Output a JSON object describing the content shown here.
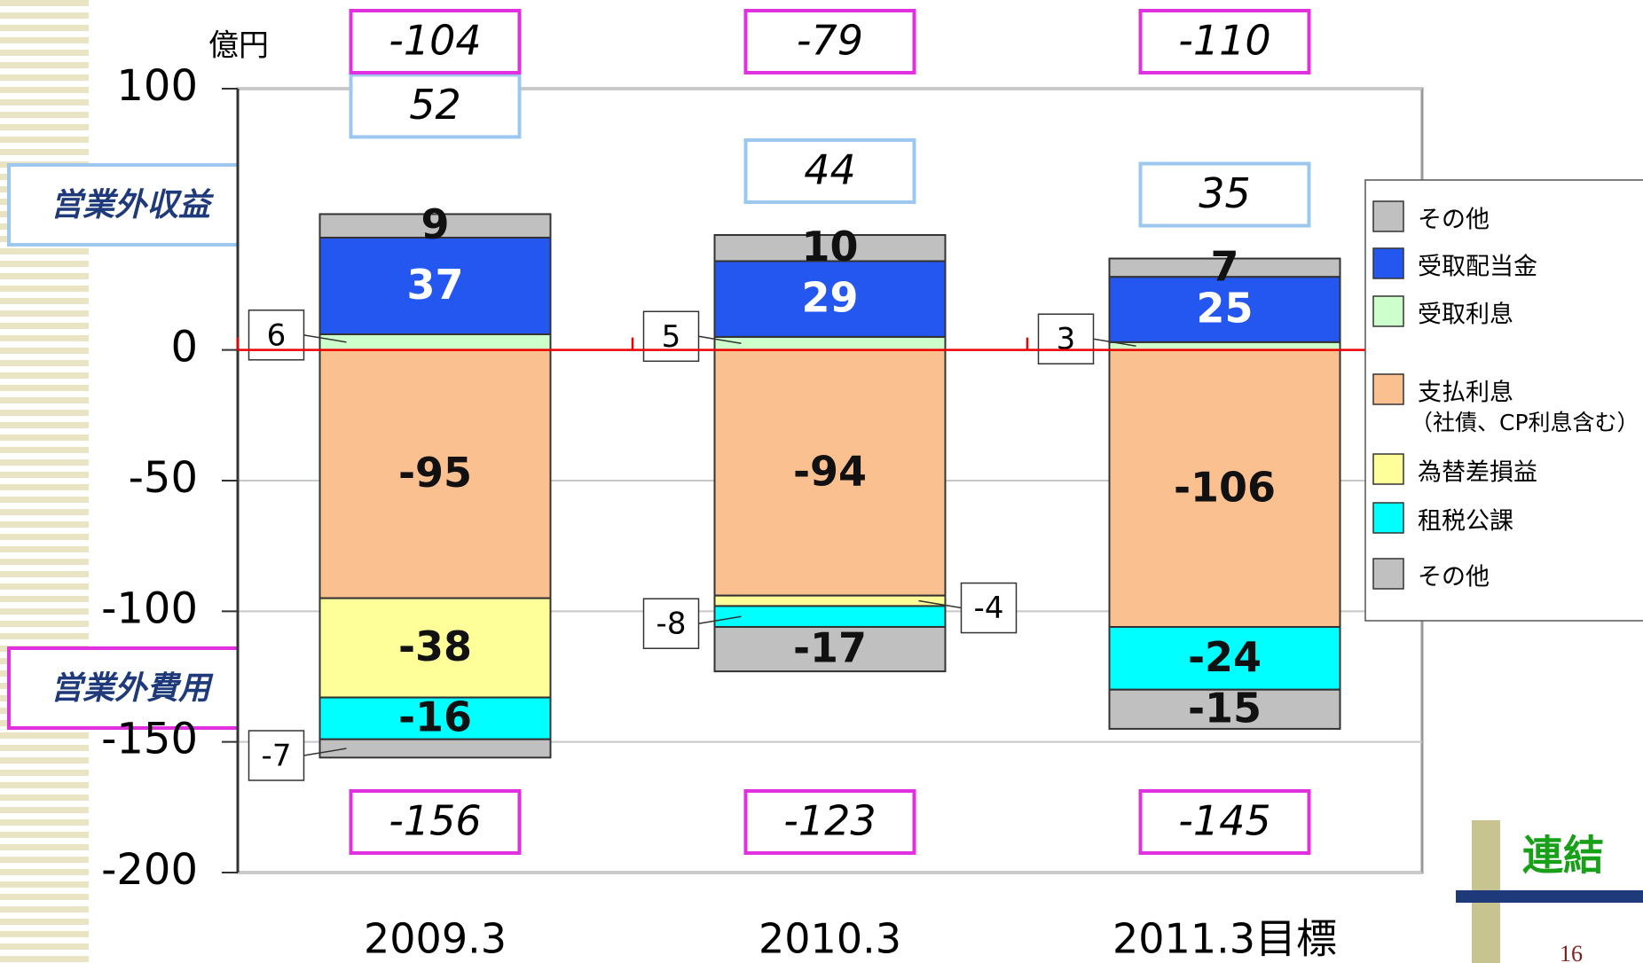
{
  "unit": "億円",
  "badge": "連結",
  "page_number": "16",
  "chart_data": {
    "type": "bar",
    "stacked": true,
    "categories": [
      "2009.3",
      "2010.3",
      "2011.3目標"
    ],
    "series": [
      {
        "name": "その他",
        "color": "#c0c0c0",
        "values": [
          9,
          10,
          7
        ]
      },
      {
        "name": "受取配当金",
        "color": "#2456f0",
        "values": [
          37,
          29,
          25
        ]
      },
      {
        "name": "受取利息",
        "color": "#ccffcc",
        "values": [
          6,
          5,
          3
        ]
      },
      {
        "name": "支払利息",
        "note": "（社債、CP利息含む）",
        "color": "#fac090",
        "values": [
          -95,
          -94,
          -106
        ]
      },
      {
        "name": "為替差損益",
        "color": "#ffff99",
        "values": [
          -38,
          -4,
          null
        ]
      },
      {
        "name": "租税公課",
        "color": "#00ffff",
        "values": [
          -16,
          -8,
          -24
        ]
      },
      {
        "name": "その他",
        "color": "#c0c0c0",
        "values": [
          -7,
          -17,
          -15
        ]
      }
    ],
    "ylim": [
      -200,
      100
    ],
    "yticks": [
      -200,
      -150,
      -100,
      -50,
      0,
      100
    ],
    "grid": true,
    "income_label": "営業外収益",
    "expense_label": "営業外費用",
    "income_totals": [
      52,
      44,
      35
    ],
    "expense_totals": [
      -156,
      -123,
      -145
    ],
    "net_totals": [
      -104,
      -79,
      -110
    ]
  }
}
